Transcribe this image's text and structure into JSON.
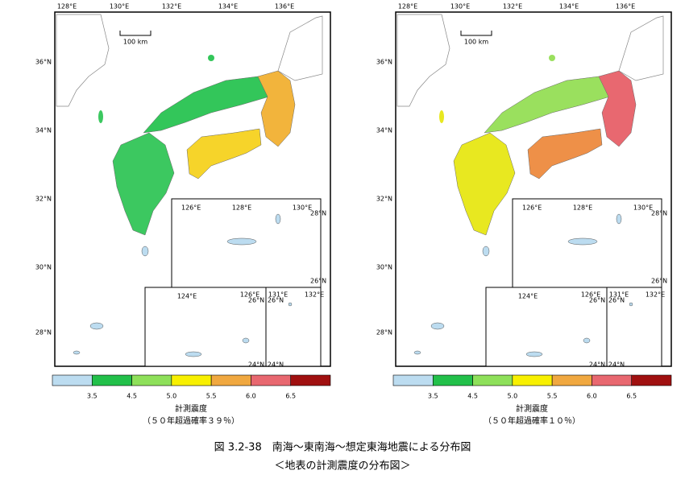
{
  "maps": [
    {
      "lon_labels": [
        "128°E",
        "130°E",
        "132°E",
        "134°E",
        "136°E"
      ],
      "lat_labels": [
        "36°N",
        "34°N",
        "32°N",
        "30°N",
        "28°N"
      ],
      "scale_label": "100 km",
      "insets": [
        {
          "labels": [
            "126°E",
            "128°E",
            "130°E",
            "28°N",
            "26°N"
          ]
        },
        {
          "labels": [
            "124°E",
            "126°E",
            "26°N",
            "24°N"
          ]
        },
        {
          "labels": [
            "131°E",
            "26°N",
            "132°E",
            "24°N"
          ]
        }
      ],
      "land_colors": {
        "chugoku": "#33c65a",
        "kinki": "#f2b43c",
        "shikoku": "#f6d42a",
        "kyushu": "#3cc860"
      },
      "colorbar": {
        "colors": [
          "#bcdcf0",
          "#22c04a",
          "#8ee05a",
          "#f8f000",
          "#f0a840",
          "#e86870",
          "#a01010"
        ],
        "ticks": [
          "3.5",
          "4.5",
          "5.0",
          "5.5",
          "6.0",
          "6.5"
        ]
      },
      "legend_title": "計測震度",
      "legend_subtitle": "（５０年超過確率３９％）"
    },
    {
      "lon_labels": [
        "128°E",
        "130°E",
        "132°E",
        "134°E",
        "136°E"
      ],
      "lat_labels": [
        "36°N",
        "34°N",
        "32°N",
        "30°N",
        "28°N"
      ],
      "scale_label": "100 km",
      "insets": [
        {
          "labels": [
            "126°E",
            "128°E",
            "130°E",
            "28°N",
            "26°N"
          ]
        },
        {
          "labels": [
            "124°E",
            "126°E",
            "26°N",
            "24°N"
          ]
        },
        {
          "labels": [
            "131°E",
            "26°N",
            "132°E",
            "24°N"
          ]
        }
      ],
      "land_colors": {
        "chugoku": "#9ae05e",
        "kinki": "#e86870",
        "shikoku": "#ee9048",
        "kyushu": "#e8e820"
      },
      "colorbar": {
        "colors": [
          "#bcdcf0",
          "#22c04a",
          "#8ee05a",
          "#f8f000",
          "#f0a840",
          "#e86870",
          "#a01010"
        ],
        "ticks": [
          "3.5",
          "4.5",
          "5.0",
          "5.5",
          "6.0",
          "6.5"
        ]
      },
      "legend_title": "計測震度",
      "legend_subtitle": "（５０年超過確率１０％）"
    }
  ],
  "caption": {
    "line1": "図 3.2-38　南海～東南海～想定東海地震による分布図",
    "line2": "＜地表の計測震度の分布図＞"
  }
}
